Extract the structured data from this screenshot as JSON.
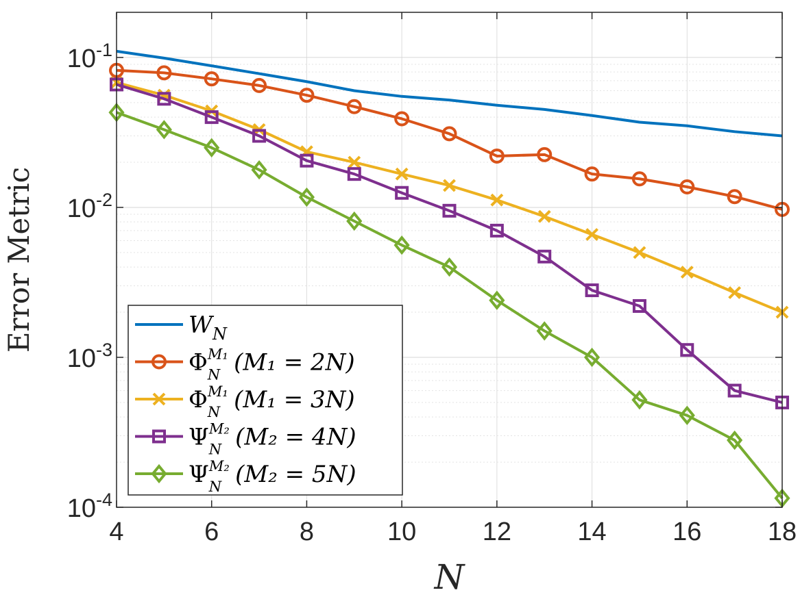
{
  "chart_data": {
    "type": "line",
    "title": "",
    "xlabel": "N",
    "ylabel": "Error Metric",
    "xlim": [
      4,
      18
    ],
    "ylim": [
      0.0001,
      0.2
    ],
    "yscale": "log",
    "x_ticks": [
      4,
      6,
      8,
      10,
      12,
      14,
      16,
      18
    ],
    "x_tick_labels": [
      "4",
      "6",
      "8",
      "10",
      "12",
      "14",
      "16",
      "18"
    ],
    "y_ticks": [
      0.0001,
      0.001,
      0.01,
      0.1
    ],
    "y_tick_labels": [
      {
        "base": "10",
        "exp": "-4"
      },
      {
        "base": "10",
        "exp": "-3"
      },
      {
        "base": "10",
        "exp": "-2"
      },
      {
        "base": "10",
        "exp": "-1"
      }
    ],
    "grid": true,
    "minor_grid": true,
    "legend_position": "bottom-left",
    "x": [
      4,
      5,
      6,
      7,
      8,
      9,
      10,
      11,
      12,
      13,
      14,
      15,
      16,
      17,
      18
    ],
    "series": [
      {
        "legend": {
          "symbol": "W",
          "sub": "N",
          "sup": "",
          "cond": ""
        },
        "color": "#0072BD",
        "marker": "none",
        "values": [
          0.11,
          0.099,
          0.088,
          0.078,
          0.069,
          0.06,
          0.055,
          0.052,
          0.048,
          0.045,
          0.041,
          0.037,
          0.035,
          0.032,
          0.03
        ]
      },
      {
        "legend": {
          "symbol": "Φ",
          "sub": "N",
          "sup": "M₁",
          "cond": "(M₁ = 2N)"
        },
        "color": "#D95319",
        "marker": "circle",
        "values": [
          0.082,
          0.079,
          0.072,
          0.065,
          0.056,
          0.047,
          0.039,
          0.031,
          0.022,
          0.0225,
          0.0167,
          0.0155,
          0.0137,
          0.0118,
          0.0097
        ]
      },
      {
        "legend": {
          "symbol": "Φ",
          "sub": "N",
          "sup": "M₁",
          "cond": "(M₁ = 3N)"
        },
        "color": "#EDB120",
        "marker": "x",
        "values": [
          0.068,
          0.056,
          0.044,
          0.033,
          0.0235,
          0.02,
          0.0167,
          0.014,
          0.0112,
          0.0087,
          0.0066,
          0.005,
          0.0037,
          0.0027,
          0.002
        ]
      },
      {
        "legend": {
          "symbol": "Ψ",
          "sub": "N",
          "sup": "M₂",
          "cond": "(M₂ = 4N)"
        },
        "color": "#7E2F8E",
        "marker": "square",
        "values": [
          0.066,
          0.053,
          0.04,
          0.03,
          0.0205,
          0.0167,
          0.0125,
          0.0095,
          0.007,
          0.0047,
          0.0028,
          0.0022,
          0.00112,
          0.0006,
          0.0005
        ]
      },
      {
        "legend": {
          "symbol": "Ψ",
          "sub": "N",
          "sup": "M₂",
          "cond": "(M₂ = 5N)"
        },
        "color": "#77AC30",
        "marker": "diamond",
        "values": [
          0.043,
          0.033,
          0.025,
          0.0178,
          0.0117,
          0.0081,
          0.0056,
          0.004,
          0.0024,
          0.0015,
          0.001,
          0.00052,
          0.00041,
          0.00028,
          0.000115
        ]
      }
    ]
  }
}
